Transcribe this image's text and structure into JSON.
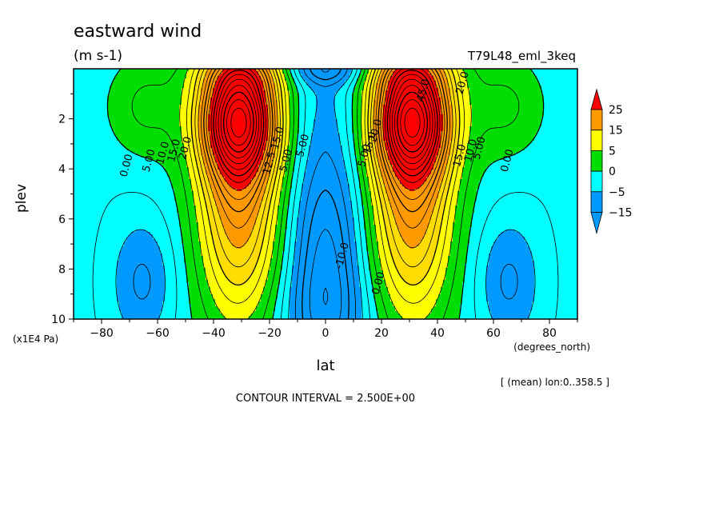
{
  "chart_data": {
    "type": "contour",
    "title": "eastward wind",
    "units": "(m s-1)",
    "run_label": "T79L48_eml_3keq",
    "xlabel": "lat",
    "x_units": "(degrees_north)",
    "ylabel": "plev",
    "y_units": "(x1E4 Pa)",
    "x_range": [
      -90,
      90
    ],
    "y_range": [
      0,
      10
    ],
    "y_inverted": true,
    "x_ticks": [
      -80,
      -60,
      -40,
      -20,
      0,
      20,
      40,
      60,
      80
    ],
    "y_ticks": [
      2,
      4,
      6,
      8,
      10
    ],
    "mean_note": "[ (mean) lon:0..358.5 ]",
    "contour_interval_text": "CONTOUR INTERVAL = 2.500E+00",
    "contour_interval": 2.5,
    "colorbar": {
      "labels": [
        "25",
        "15",
        "5",
        "0",
        "-5",
        "-15"
      ],
      "bounds": [
        25,
        15,
        5,
        0,
        -5,
        -15
      ],
      "colors": [
        "#ff0000",
        "#ff9900",
        "#ffff00",
        "#00dd00",
        "#00ffff",
        "#0099ff"
      ]
    },
    "contour_labels": [
      {
        "text": "0.00",
        "lat": -70,
        "p": 3.9
      },
      {
        "text": "5.00",
        "lat": -62,
        "p": 3.7
      },
      {
        "text": "10.0",
        "lat": -57,
        "p": 3.4
      },
      {
        "text": "15.0",
        "lat": -53,
        "p": 3.3
      },
      {
        "text": "20.0",
        "lat": -49,
        "p": 3.2
      },
      {
        "text": "12.5",
        "lat": -19,
        "p": 3.8
      },
      {
        "text": "15.0",
        "lat": -16,
        "p": 2.8
      },
      {
        "text": "5.00",
        "lat": -13,
        "p": 3.7
      },
      {
        "text": "5.00",
        "lat": -7,
        "p": 3.1
      },
      {
        "text": "-10.0",
        "lat": 7,
        "p": 7.5
      },
      {
        "text": "5.00",
        "lat": 15,
        "p": 3.5
      },
      {
        "text": "15.0",
        "lat": 17,
        "p": 3.0
      },
      {
        "text": "20.0",
        "lat": 19,
        "p": 2.5
      },
      {
        "text": "0.00",
        "lat": 20,
        "p": 8.6
      },
      {
        "text": "15.0",
        "lat": 49,
        "p": 3.5
      },
      {
        "text": "10.0",
        "lat": 53,
        "p": 3.3
      },
      {
        "text": "5.00",
        "lat": 56,
        "p": 3.2
      },
      {
        "text": "0.00",
        "lat": 66,
        "p": 3.7
      },
      {
        "text": "20.0",
        "lat": 50,
        "p": 0.6
      },
      {
        "text": "45.0",
        "lat": 36,
        "p": 0.9
      }
    ]
  }
}
